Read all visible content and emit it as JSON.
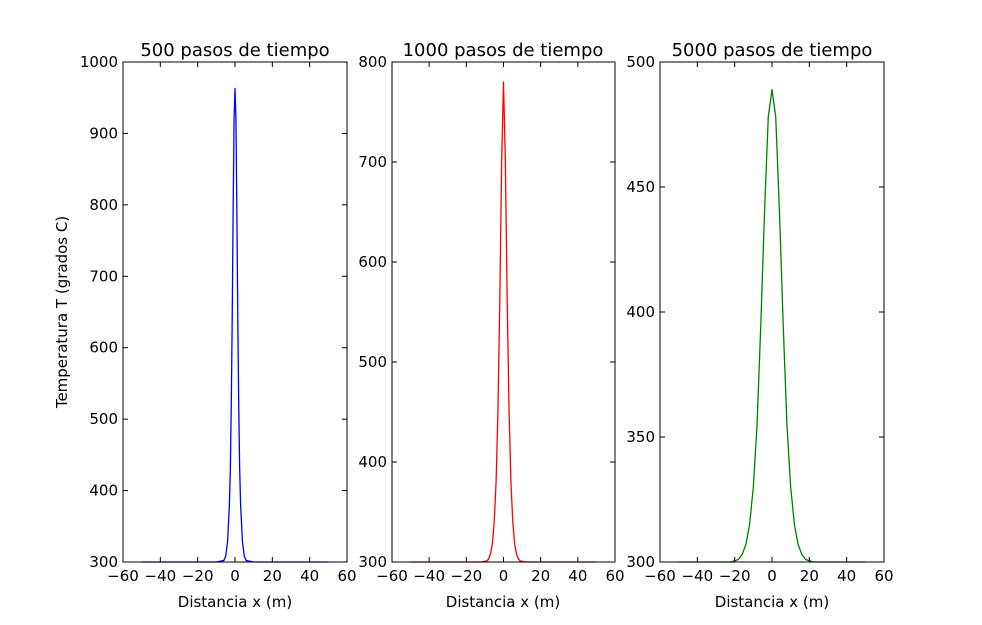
{
  "figure": {
    "ylabel": "Temperatura T (grados C)"
  },
  "chart_data": [
    {
      "type": "line",
      "title": "500 pasos de tiempo",
      "xlabel": "Distancia x (m)",
      "xlim": [
        -60,
        60
      ],
      "ylim": [
        300,
        1000
      ],
      "xticks": [
        -60,
        -40,
        -20,
        0,
        20,
        40,
        60
      ],
      "yticks": [
        300,
        400,
        500,
        600,
        700,
        800,
        900,
        1000
      ],
      "xtick_labels": [
        "−60",
        "−40",
        "−20",
        "0",
        "20",
        "40",
        "60"
      ],
      "ytick_labels": [
        "300",
        "400",
        "500",
        "600",
        "700",
        "800",
        "900",
        "1000"
      ],
      "grid": false,
      "series": [
        {
          "color": "#0000ff",
          "x": [
            -50,
            -10,
            -6,
            -5,
            -4,
            -3,
            -2.5,
            -2,
            -1.5,
            -1,
            -0.5,
            0,
            0.5,
            1,
            1.5,
            2,
            2.5,
            3,
            4,
            5,
            6,
            10,
            50
          ],
          "y": [
            300,
            300,
            302,
            308,
            328,
            380,
            430,
            520,
            640,
            790,
            920,
            963,
            920,
            790,
            640,
            520,
            430,
            380,
            328,
            308,
            302,
            300,
            300
          ]
        }
      ]
    },
    {
      "type": "line",
      "title": "1000 pasos de tiempo",
      "xlabel": "Distancia x (m)",
      "xlim": [
        -60,
        60
      ],
      "ylim": [
        300,
        800
      ],
      "xticks": [
        -60,
        -40,
        -20,
        0,
        20,
        40,
        60
      ],
      "yticks": [
        300,
        400,
        500,
        600,
        700,
        800
      ],
      "xtick_labels": [
        "−60",
        "−40",
        "−20",
        "0",
        "20",
        "40",
        "60"
      ],
      "ytick_labels": [
        "300",
        "400",
        "500",
        "600",
        "700",
        "800"
      ],
      "grid": false,
      "series": [
        {
          "color": "#ff0000",
          "x": [
            -50,
            -12,
            -9,
            -8,
            -7,
            -6,
            -5,
            -4,
            -3,
            -2,
            -1,
            0,
            1,
            2,
            3,
            4,
            5,
            6,
            7,
            8,
            9,
            12,
            50
          ],
          "y": [
            300,
            300,
            301,
            303,
            308,
            318,
            340,
            380,
            450,
            560,
            700,
            780,
            700,
            560,
            450,
            380,
            340,
            318,
            308,
            303,
            301,
            300,
            300
          ]
        }
      ]
    },
    {
      "type": "line",
      "title": "5000 pasos de tiempo",
      "xlabel": "Distancia x (m)",
      "xlim": [
        -60,
        60
      ],
      "ylim": [
        300,
        500
      ],
      "xticks": [
        -60,
        -40,
        -20,
        0,
        20,
        40,
        60
      ],
      "yticks": [
        300,
        350,
        400,
        450,
        500
      ],
      "xtick_labels": [
        "−60",
        "−40",
        "−20",
        "0",
        "20",
        "40",
        "60"
      ],
      "ytick_labels": [
        "300",
        "350",
        "400",
        "450",
        "500"
      ],
      "grid": false,
      "series": [
        {
          "color": "#008000",
          "x": [
            -50,
            -22,
            -18,
            -16,
            -14,
            -12,
            -10,
            -8,
            -6,
            -4,
            -2,
            0,
            2,
            4,
            6,
            8,
            10,
            12,
            14,
            16,
            18,
            22,
            50
          ],
          "y": [
            300,
            300,
            301,
            303,
            307,
            315,
            330,
            355,
            395,
            440,
            478,
            489,
            478,
            440,
            395,
            355,
            330,
            315,
            307,
            303,
            301,
            300,
            300
          ]
        }
      ]
    }
  ]
}
